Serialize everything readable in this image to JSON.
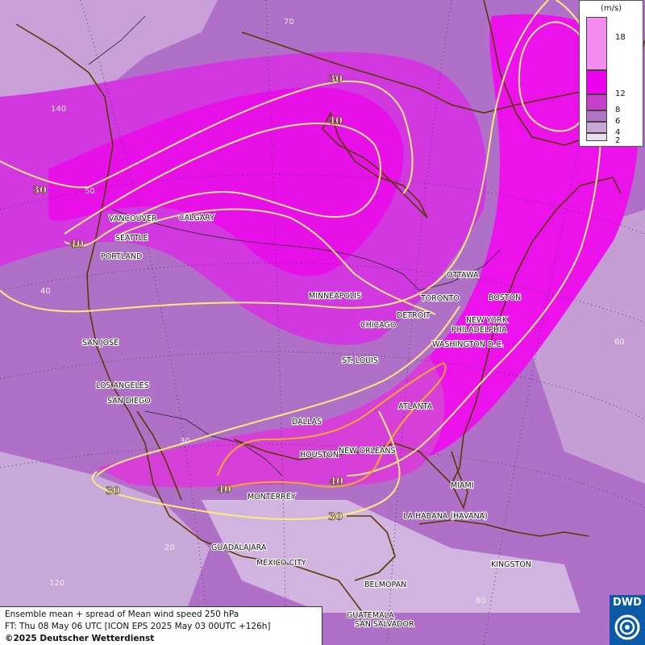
{
  "legend": {
    "unit": "(m/s)",
    "levels": [
      {
        "label": "18",
        "color": "#f58cf0"
      },
      {
        "label": "12",
        "color": "#ee00ee"
      },
      {
        "label": "8",
        "color": "#c640c8"
      },
      {
        "label": "6",
        "color": "#b074c0"
      },
      {
        "label": "4",
        "color": "#c8a8d8"
      },
      {
        "label": "2",
        "color": "#e8dcef"
      }
    ]
  },
  "info": {
    "line1": "Ensemble mean + spread of Mean wind speed 250 hPa",
    "line2": "FT: Thu 08 May 06 UTC [ICON EPS 2025 May 03 00UTC +126h]",
    "copyright": "©2025 Deutscher Wetterdienst"
  },
  "logo": {
    "text": "DWD"
  },
  "cities": [
    {
      "id": "vancouver",
      "name": "VANCOUVER"
    },
    {
      "id": "calgary",
      "name": "CALGARY"
    },
    {
      "id": "seattle",
      "name": "SEATTLE"
    },
    {
      "id": "portland",
      "name": "PORTLAND"
    },
    {
      "id": "ottawa",
      "name": "OTTAWA"
    },
    {
      "id": "minneapolis",
      "name": "MINNEAPOLIS"
    },
    {
      "id": "toronto",
      "name": "TORONTO"
    },
    {
      "id": "boston",
      "name": "BOSTON"
    },
    {
      "id": "detroit",
      "name": "DETROIT"
    },
    {
      "id": "newyork",
      "name": "NEW YORK"
    },
    {
      "id": "chicago",
      "name": "CHICAGO"
    },
    {
      "id": "philadelphia",
      "name": "PHILADELPHIA"
    },
    {
      "id": "sanjose",
      "name": "SAN JOSE"
    },
    {
      "id": "washington",
      "name": "WASHINGTON D.C."
    },
    {
      "id": "stlouis",
      "name": "ST. LOUIS"
    },
    {
      "id": "losangeles",
      "name": "LOS ANGELES"
    },
    {
      "id": "sandiego",
      "name": "SAN DIEGO"
    },
    {
      "id": "atlanta",
      "name": "ATLANTA"
    },
    {
      "id": "dallas",
      "name": "DALLAS"
    },
    {
      "id": "houston",
      "name": "HOUSTON"
    },
    {
      "id": "neworleans",
      "name": "NEW ORLEANS"
    },
    {
      "id": "miami",
      "name": "MIAMI"
    },
    {
      "id": "monterrey",
      "name": "MONTERREY"
    },
    {
      "id": "lahabana",
      "name": "LA HABANA (HAVANA)"
    },
    {
      "id": "guadalajara",
      "name": "GUADALAJARA"
    },
    {
      "id": "mexicocity",
      "name": "MEXICO CITY"
    },
    {
      "id": "kingston",
      "name": "KINGSTON"
    },
    {
      "id": "belmopan",
      "name": "BELMOPAN"
    },
    {
      "id": "guatemala",
      "name": "GUATEMALA"
    },
    {
      "id": "sansalvador",
      "name": "SAN SALVADOR"
    }
  ],
  "contour_labels": {
    "c30_north": "30",
    "c40_north": "40",
    "c30_west": "30",
    "c40_west": "40",
    "c30_south": "30",
    "c40_south_west": "40",
    "c40_south_east": "40",
    "c30_gulf": "30"
  },
  "grid_labels": {
    "lat70": "70",
    "lat50": "50",
    "lat40": "40",
    "lat30": "30",
    "lat20": "20",
    "lon140": "140",
    "lon120": "120",
    "lon60": "60",
    "lon80": "80",
    "top70": "70"
  },
  "colors": {
    "contour_30": "#ffe97a",
    "contour_40": "#ffe97a",
    "contour_south": "#f0a830",
    "coast": "#5a3a00"
  }
}
